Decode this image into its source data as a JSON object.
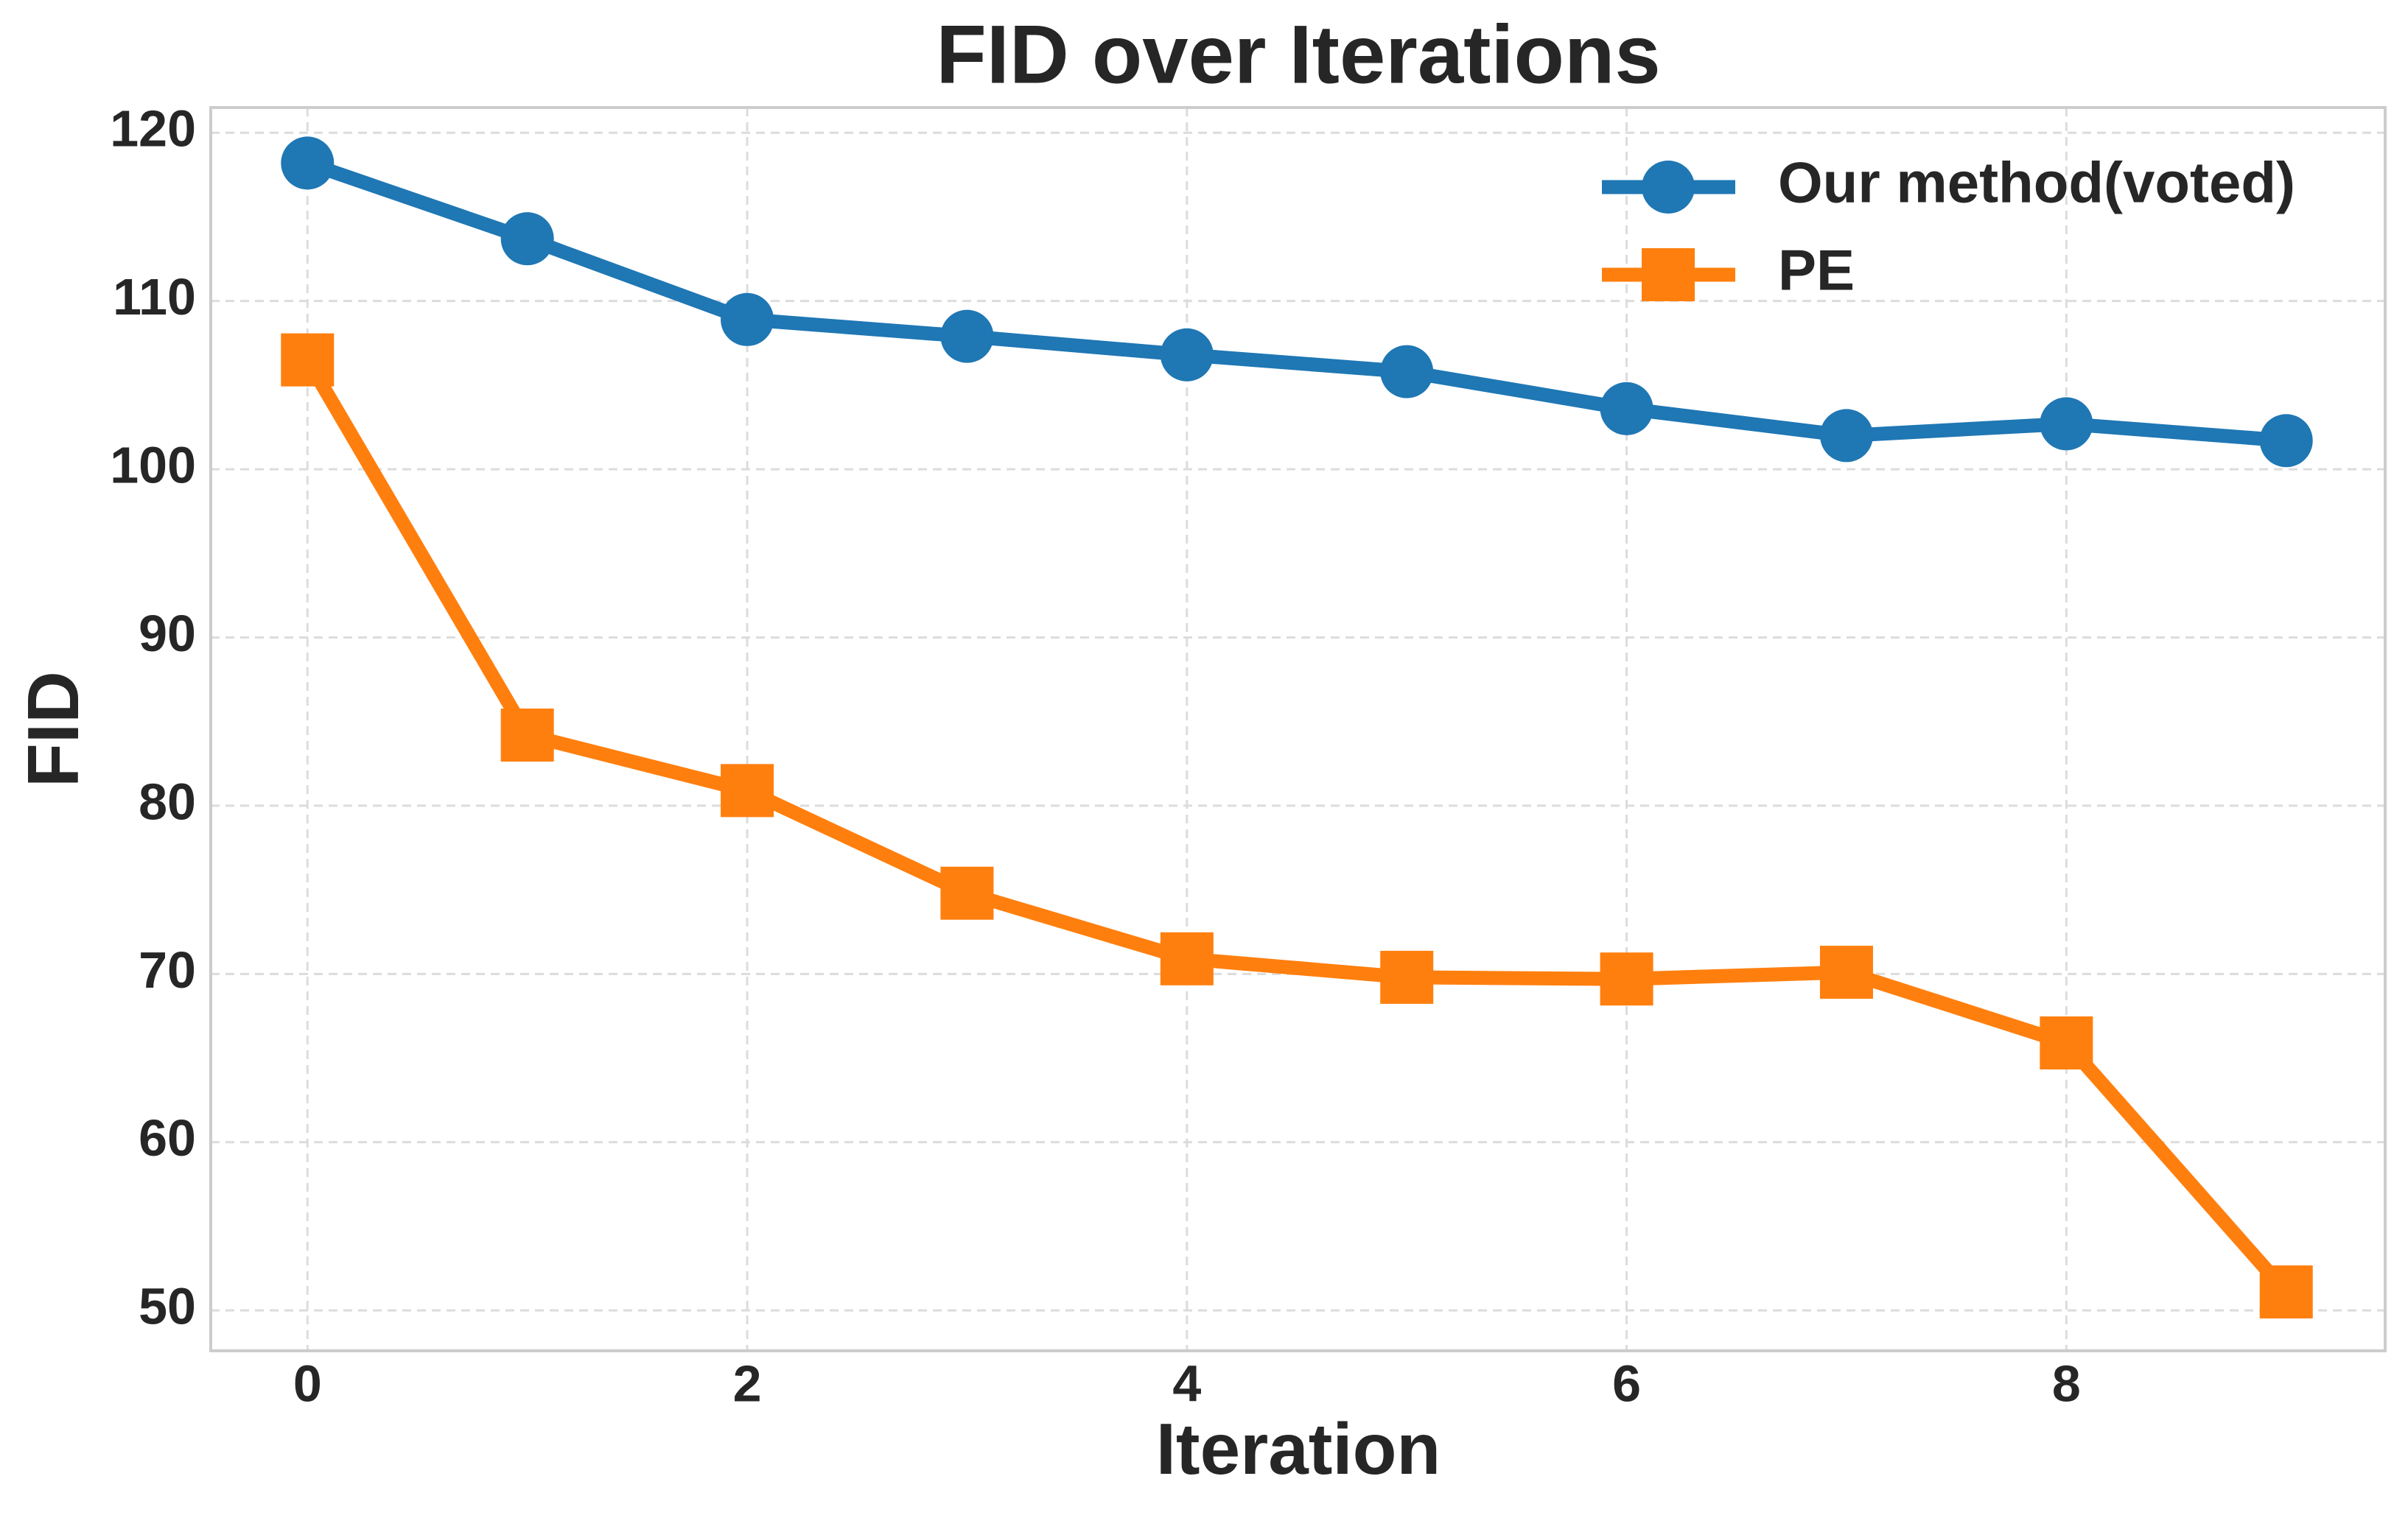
{
  "chart_data": {
    "type": "line",
    "title": "FID over Iterations",
    "x_label": "Iteration",
    "y_label": "FID",
    "x": [
      0,
      1,
      2,
      3,
      4,
      5,
      6,
      7,
      8,
      9
    ],
    "series": [
      {
        "name": "Our method(voted)",
        "color": "#1f77b4",
        "marker": "circle",
        "values": [
          118.2,
          113.7,
          108.9,
          107.9,
          106.8,
          105.8,
          103.6,
          102.0,
          102.7,
          101.7
        ]
      },
      {
        "name": "PE",
        "color": "#ff7f0e",
        "marker": "square",
        "values": [
          106.5,
          84.2,
          80.9,
          74.8,
          70.9,
          69.8,
          69.7,
          70.1,
          65.9,
          51.1
        ]
      }
    ],
    "xlim": [
      -0.44,
      9.45
    ],
    "ylim": [
      47.6,
      121.5
    ],
    "xticks": [
      0,
      2,
      4,
      6,
      8
    ],
    "yticks": [
      50,
      60,
      70,
      80,
      90,
      100,
      110,
      120
    ],
    "grid": true,
    "legend": "upper right"
  }
}
